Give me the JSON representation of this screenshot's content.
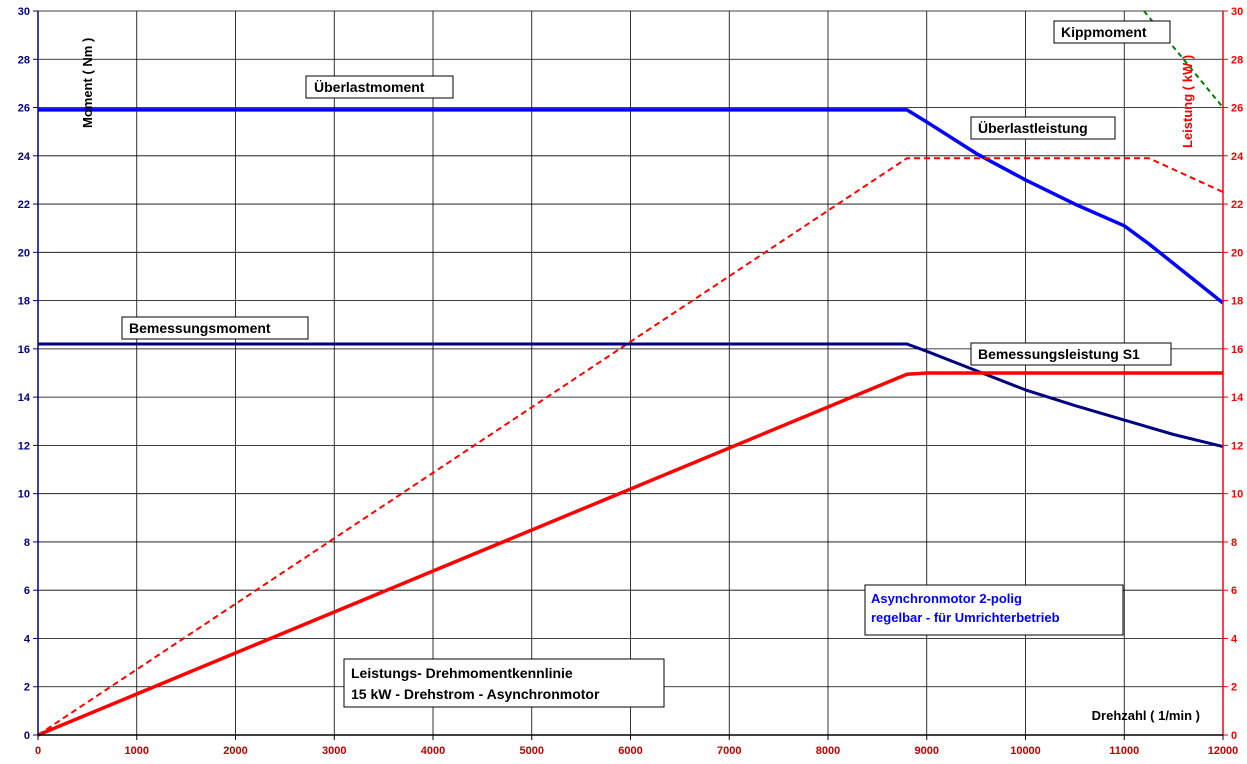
{
  "chart_data": {
    "type": "line",
    "xlabel": "Drehzahl ( 1/min )",
    "ylabel_left": "Moment ( Nm )",
    "ylabel_right": "Leistung ( kW )",
    "xlim": [
      0,
      12000
    ],
    "ylim_left": [
      0,
      30
    ],
    "ylim_right": [
      0,
      30
    ],
    "x_ticks": [
      0,
      1000,
      2000,
      3000,
      4000,
      5000,
      6000,
      7000,
      8000,
      9000,
      10000,
      11000,
      12000
    ],
    "y_ticks": [
      0,
      2,
      4,
      6,
      8,
      10,
      12,
      14,
      16,
      18,
      20,
      22,
      24,
      26,
      28,
      30
    ],
    "grid": true,
    "colors": {
      "left_axis": "#000080",
      "right_axis": "#ff0000",
      "x_axis": "#c00000",
      "overload_torque": "#0000ff",
      "rated_torque": "#000080",
      "power": "#ff0000",
      "breakdown": "#008000",
      "note": "#0000ff"
    },
    "series": [
      {
        "name": "Überlastmoment",
        "axis": "left",
        "style": "solid",
        "x": [
          0,
          8800,
          9000,
          9500,
          10000,
          10500,
          11000,
          11250,
          12000
        ],
        "y": [
          25.9,
          25.9,
          25.4,
          24.1,
          23.0,
          22.0,
          21.1,
          20.35,
          17.9
        ]
      },
      {
        "name": "Überlastleistung",
        "axis": "right",
        "style": "dashed",
        "x": [
          0,
          8800,
          11250,
          12000
        ],
        "y": [
          0,
          23.9,
          23.9,
          22.5
        ]
      },
      {
        "name": "Bemessungsmoment",
        "axis": "left",
        "style": "solid",
        "x": [
          0,
          8800,
          9000,
          9500,
          10000,
          10500,
          11000,
          11500,
          12000
        ],
        "y": [
          16.2,
          16.2,
          15.9,
          15.1,
          14.3,
          13.65,
          13.05,
          12.45,
          11.95
        ]
      },
      {
        "name": "Bemessungsleistung S1",
        "axis": "right",
        "style": "solid",
        "x": [
          0,
          8800,
          9000,
          12000
        ],
        "y": [
          0,
          14.95,
          15.0,
          15.0
        ]
      },
      {
        "name": "Kippmoment",
        "axis": "left",
        "style": "dashed",
        "x": [
          11200,
          11600,
          12000
        ],
        "y": [
          30.0,
          28.0,
          26.0
        ]
      }
    ],
    "annotations": {
      "ueberlastmoment": "Überlastmoment",
      "ueberlastleistung": "Überlastleistung",
      "bemessungsmoment": "Bemessungsmoment",
      "bemessungsleistung": "Bemessungsleistung S1",
      "kippmoment": "Kippmoment",
      "note_line1": "Asynchronmotor 2-polig",
      "note_line2": "regelbar - für Umrichterbetrieb",
      "title_line1": "Leistungs- Drehmomentkennlinie",
      "title_line2": "15 kW - Drehstrom - Asynchronmotor"
    }
  }
}
